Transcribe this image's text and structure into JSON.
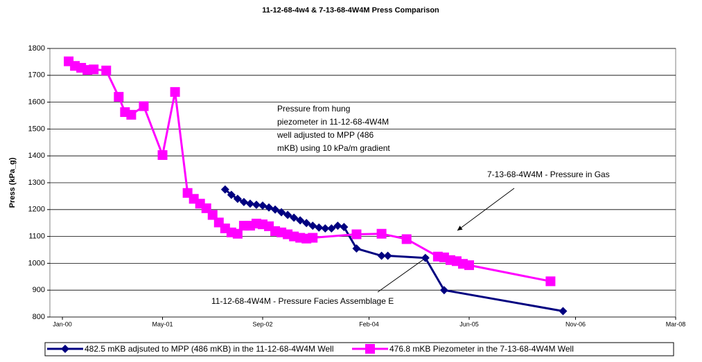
{
  "chart_data": {
    "type": "line",
    "title": "11-12-68-4w4 & 7-13-68-4W4M Press Comparison",
    "ylabel": "Press (kPa_g)",
    "ylim": [
      800,
      1800
    ],
    "yticks": [
      800,
      900,
      1000,
      1100,
      1200,
      1300,
      1400,
      1500,
      1600,
      1700,
      1800
    ],
    "xlim": [
      "1999-11",
      "2008-03"
    ],
    "xticks": [
      {
        "value": "2000-01",
        "label": "Jan-00"
      },
      {
        "value": "2001-05",
        "label": "May-01"
      },
      {
        "value": "2002-09",
        "label": "Sep-02"
      },
      {
        "value": "2004-02",
        "label": "Feb-04"
      },
      {
        "value": "2005-06",
        "label": "Jun-05"
      },
      {
        "value": "2006-11",
        "label": "Nov-06"
      },
      {
        "value": "2008-03",
        "label": "Mar-08"
      }
    ],
    "grid": true,
    "legend": "bottom",
    "series": [
      {
        "name": "482.5 mKB adjsuted to MPP (486 mKB) in the 11-12-68-4W4M Well",
        "color": "#000080",
        "marker": "diamond",
        "x": [
          "2002-03",
          "2002-04",
          "2002-05",
          "2002-06",
          "2002-07",
          "2002-08",
          "2002-09",
          "2002-10",
          "2002-11",
          "2002-12",
          "2003-01",
          "2003-02",
          "2003-03",
          "2003-04",
          "2003-05",
          "2003-06",
          "2003-07",
          "2003-08",
          "2003-09",
          "2003-10",
          "2003-12",
          "2004-04",
          "2004-05",
          "2004-11",
          "2005-02",
          "2006-09"
        ],
        "values": [
          1275,
          1255,
          1240,
          1228,
          1222,
          1218,
          1215,
          1208,
          1200,
          1190,
          1180,
          1170,
          1160,
          1150,
          1140,
          1133,
          1130,
          1130,
          1140,
          1135,
          1055,
          1028,
          1028,
          1020,
          900,
          822
        ]
      },
      {
        "name": "476.8 mKB Piezometer in the 7-13-68-4W4M Well",
        "color": "#ff00ff",
        "marker": "square",
        "x": [
          "2000-02",
          "2000-03",
          "2000-04",
          "2000-05",
          "2000-06",
          "2000-08",
          "2000-10",
          "2000-11",
          "2000-12",
          "2001-02",
          "2001-05",
          "2001-07",
          "2001-09",
          "2001-10",
          "2001-11",
          "2001-12",
          "2002-01",
          "2002-02",
          "2002-03",
          "2002-04",
          "2002-05",
          "2002-06",
          "2002-07",
          "2002-08",
          "2002-09",
          "2002-10",
          "2002-11",
          "2002-12",
          "2003-01",
          "2003-02",
          "2003-03",
          "2003-04",
          "2003-05",
          "2003-12",
          "2004-04",
          "2004-08",
          "2005-01",
          "2005-02",
          "2005-03",
          "2005-04",
          "2005-05",
          "2005-06",
          "2006-07"
        ],
        "values": [
          1752,
          1735,
          1728,
          1720,
          1722,
          1718,
          1620,
          1563,
          1553,
          1585,
          1403,
          1638,
          1262,
          1240,
          1222,
          1205,
          1180,
          1152,
          1130,
          1115,
          1110,
          1140,
          1140,
          1148,
          1145,
          1138,
          1120,
          1115,
          1108,
          1100,
          1095,
          1092,
          1095,
          1108,
          1110,
          1090,
          1025,
          1022,
          1012,
          1008,
          998,
          993,
          933
        ]
      }
    ],
    "annotations": [
      [
        "Pressure from hung",
        "piezometer in 11-12-68-4W4M",
        "well adjusted to MPP (486",
        "mKB) using 10 kPa/m gradient"
      ],
      "7-13-68-4W4M - Pressure in Gas",
      "11-12-68-4W4M - Pressure Facies Assemblage E"
    ]
  }
}
